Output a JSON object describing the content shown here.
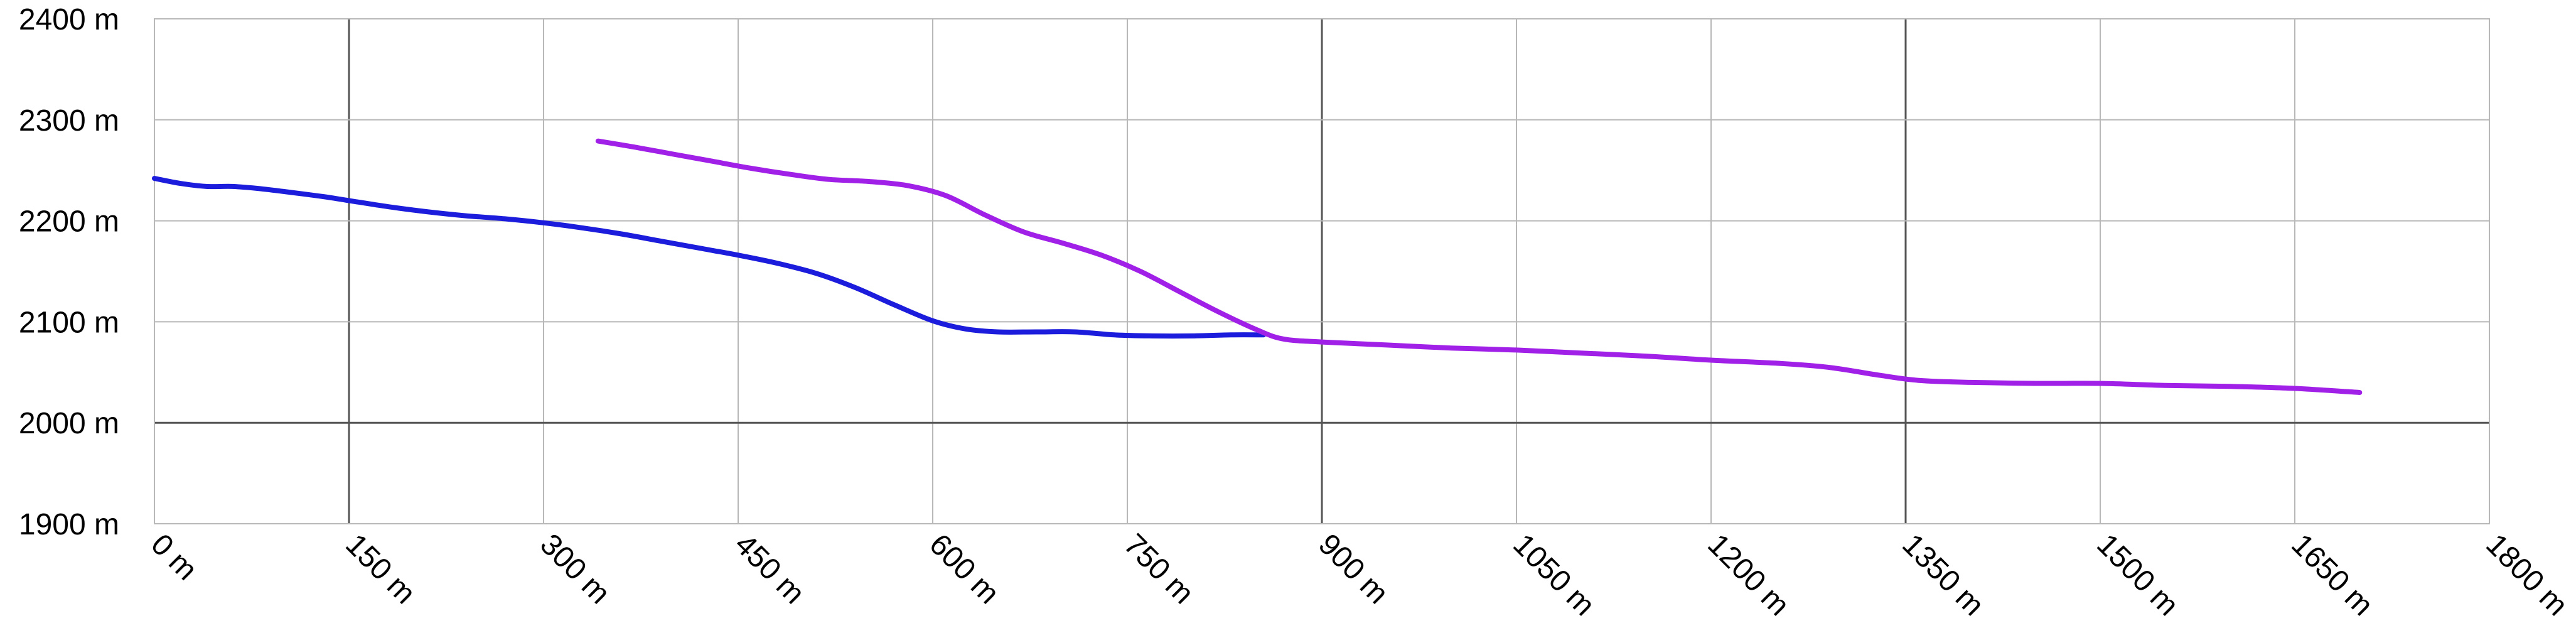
{
  "chart_data": {
    "type": "line",
    "title": "",
    "xlabel": "",
    "ylabel": "",
    "xlim": [
      0,
      1800
    ],
    "ylim": [
      1900,
      2400
    ],
    "grid": true,
    "x_ticks": [
      0,
      150,
      300,
      450,
      600,
      750,
      900,
      1050,
      1200,
      1350,
      1500,
      1650,
      1800
    ],
    "x_tick_labels": [
      "0 m",
      "150 m",
      "300 m",
      "450 m",
      "600 m",
      "750 m",
      "900 m",
      "1050 m",
      "1200 m",
      "1350 m",
      "1500 m",
      "1650 m",
      "1800 m"
    ],
    "x_major_grid": [
      150,
      900,
      1350
    ],
    "y_ticks": [
      1900,
      2000,
      2100,
      2200,
      2300,
      2400
    ],
    "y_tick_labels": [
      "1900 m",
      "2000 m",
      "2100 m",
      "2200 m",
      "2300 m",
      "2400 m"
    ],
    "y_major_grid": [
      2000
    ],
    "series": [
      {
        "color": "#1c1cdc",
        "points": [
          [
            0,
            2242
          ],
          [
            20,
            2237
          ],
          [
            40,
            2234
          ],
          [
            60,
            2234
          ],
          [
            80,
            2232
          ],
          [
            100,
            2229
          ],
          [
            130,
            2224
          ],
          [
            150,
            2220
          ],
          [
            180,
            2214
          ],
          [
            210,
            2209
          ],
          [
            240,
            2205
          ],
          [
            270,
            2202
          ],
          [
            300,
            2198
          ],
          [
            330,
            2193
          ],
          [
            360,
            2187
          ],
          [
            390,
            2180
          ],
          [
            420,
            2173
          ],
          [
            450,
            2166
          ],
          [
            480,
            2158
          ],
          [
            510,
            2148
          ],
          [
            540,
            2134
          ],
          [
            570,
            2117
          ],
          [
            600,
            2101
          ],
          [
            625,
            2093
          ],
          [
            650,
            2090
          ],
          [
            680,
            2090
          ],
          [
            710,
            2090
          ],
          [
            740,
            2087
          ],
          [
            770,
            2086
          ],
          [
            800,
            2086
          ],
          [
            830,
            2087
          ],
          [
            855,
            2087
          ]
        ]
      },
      {
        "color": "#a020e8",
        "points": [
          [
            342,
            2279
          ],
          [
            370,
            2273
          ],
          [
            400,
            2266
          ],
          [
            430,
            2259
          ],
          [
            460,
            2252
          ],
          [
            490,
            2246
          ],
          [
            520,
            2241
          ],
          [
            550,
            2239
          ],
          [
            580,
            2235
          ],
          [
            610,
            2225
          ],
          [
            640,
            2206
          ],
          [
            670,
            2189
          ],
          [
            700,
            2178
          ],
          [
            730,
            2166
          ],
          [
            760,
            2150
          ],
          [
            790,
            2130
          ],
          [
            820,
            2110
          ],
          [
            850,
            2092
          ],
          [
            870,
            2083
          ],
          [
            900,
            2080
          ],
          [
            950,
            2077
          ],
          [
            1000,
            2074
          ],
          [
            1050,
            2072
          ],
          [
            1100,
            2069
          ],
          [
            1150,
            2066
          ],
          [
            1200,
            2062
          ],
          [
            1250,
            2059
          ],
          [
            1290,
            2055
          ],
          [
            1330,
            2047
          ],
          [
            1360,
            2042
          ],
          [
            1400,
            2040
          ],
          [
            1450,
            2039
          ],
          [
            1500,
            2039
          ],
          [
            1550,
            2037
          ],
          [
            1600,
            2036
          ],
          [
            1650,
            2034
          ],
          [
            1700,
            2030
          ]
        ]
      }
    ]
  }
}
